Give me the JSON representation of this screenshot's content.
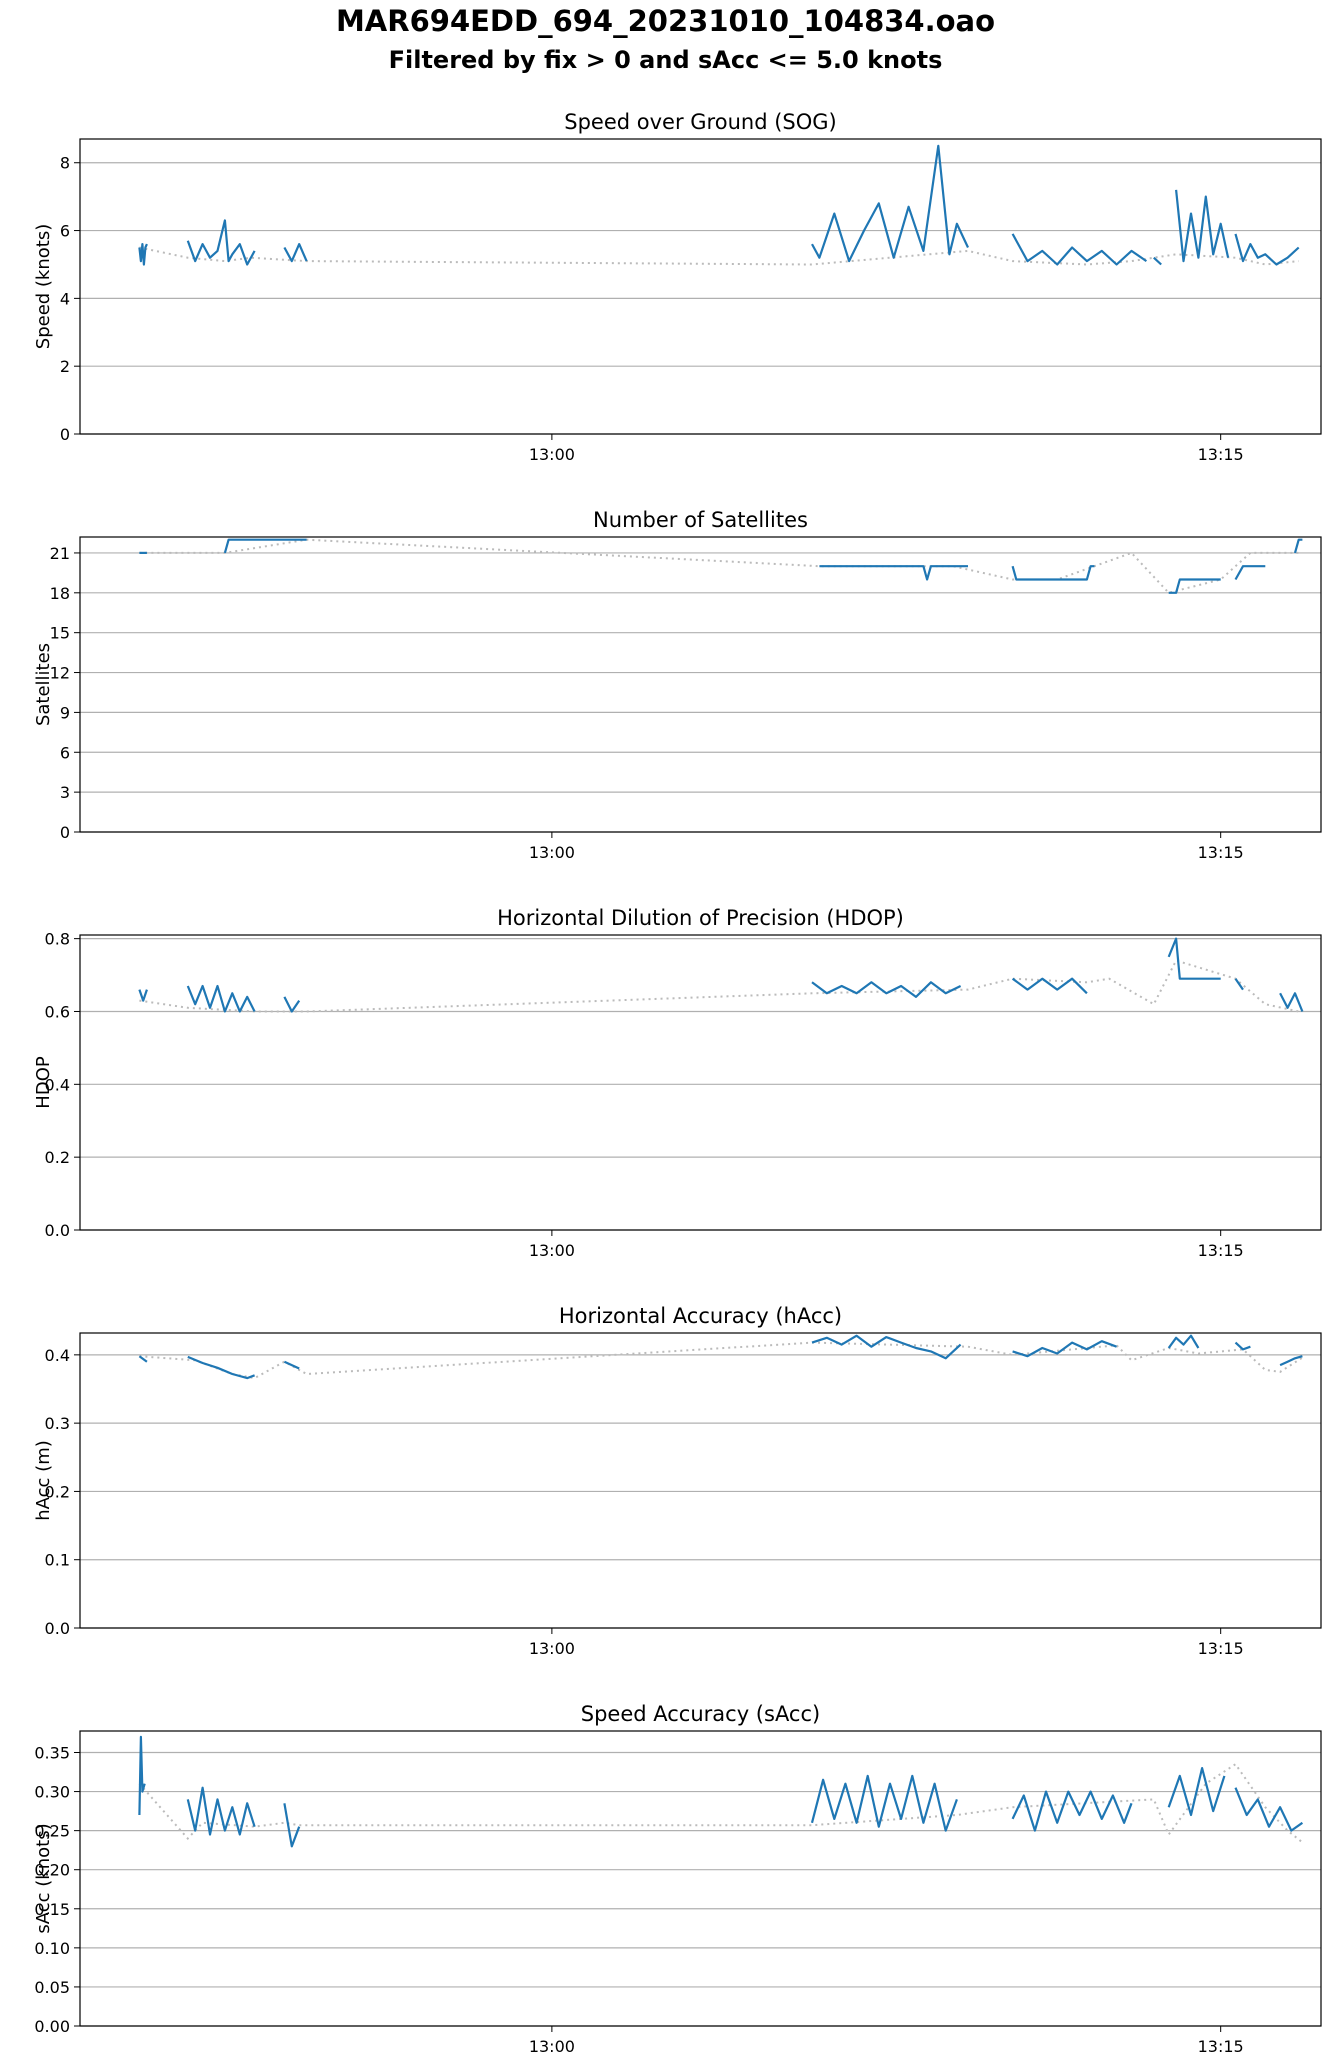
{
  "figure": {
    "title": "MAR694EDD_694_20231010_104834.oao",
    "subtitle": "Filtered by fix > 0 and sAcc <= 5.0 knots"
  },
  "chart_data": [
    {
      "type": "line",
      "title": "Speed over Ground (SOG)",
      "ylabel": "Speed (knots)",
      "xlabel": "",
      "xlim": [
        "12:49:25",
        "13:17:15"
      ],
      "ylim": [
        0,
        8.7
      ],
      "yticks": [
        "0",
        "2",
        "4",
        "6",
        "8"
      ],
      "xticks": [
        "13:00",
        "13:15"
      ],
      "grid": "y",
      "colors": {
        "measured": "#1f77b4",
        "gap": "#bbbbbb"
      },
      "segments": [
        {
          "x": [
            "12:50:45",
            "12:50:47",
            "12:50:49",
            "12:50:51",
            "12:50:53",
            "12:50:55"
          ],
          "y": [
            5.5,
            5.1,
            5.6,
            5.0,
            5.5,
            5.6
          ]
        },
        {
          "x": [
            "12:51:50",
            "12:52:00",
            "12:52:10",
            "12:52:20",
            "12:52:30",
            "12:52:40",
            "12:52:45",
            "12:52:50",
            "12:53:00",
            "12:53:10",
            "12:53:20"
          ],
          "y": [
            5.7,
            5.1,
            5.6,
            5.2,
            5.4,
            6.3,
            5.1,
            5.3,
            5.6,
            5.0,
            5.4
          ]
        },
        {
          "x": [
            "12:54:00",
            "12:54:10",
            "12:54:20",
            "12:54:30"
          ],
          "y": [
            5.5,
            5.1,
            5.6,
            5.1
          ]
        },
        {
          "x": [
            "13:05:50",
            "13:06:00",
            "13:06:20",
            "13:06:40",
            "13:07:00",
            "13:07:20",
            "13:07:40",
            "13:08:00",
            "13:08:20",
            "13:08:40",
            "13:08:55",
            "13:09:05",
            "13:09:20"
          ],
          "y": [
            5.6,
            5.2,
            6.5,
            5.1,
            6.0,
            6.8,
            5.2,
            6.7,
            5.4,
            8.5,
            5.3,
            6.2,
            5.5
          ]
        },
        {
          "x": [
            "13:10:20",
            "13:10:40",
            "13:11:00",
            "13:11:20",
            "13:11:40",
            "13:12:00",
            "13:12:20",
            "13:12:40",
            "13:13:00",
            "13:13:20"
          ],
          "y": [
            5.9,
            5.1,
            5.4,
            5.0,
            5.5,
            5.1,
            5.4,
            5.0,
            5.4,
            5.1
          ]
        },
        {
          "x": [
            "13:13:30",
            "13:13:40"
          ],
          "y": [
            5.2,
            5.0
          ]
        },
        {
          "x": [
            "13:14:00",
            "13:14:10",
            "13:14:20",
            "13:14:30",
            "13:14:40",
            "13:14:50",
            "13:15:00",
            "13:15:10"
          ],
          "y": [
            7.2,
            5.1,
            6.5,
            5.2,
            7.0,
            5.3,
            6.2,
            5.2
          ]
        },
        {
          "x": [
            "13:15:20",
            "13:15:30",
            "13:15:40",
            "13:15:50",
            "13:16:00",
            "13:16:15",
            "13:16:30",
            "13:16:45"
          ],
          "y": [
            5.9,
            5.1,
            5.6,
            5.2,
            5.3,
            5.0,
            5.2,
            5.5
          ]
        }
      ],
      "gap_line": {
        "x": [
          "12:50:45",
          "12:51:50",
          "12:52:40",
          "12:53:15",
          "12:54:30",
          "13:05:50",
          "13:09:20",
          "13:10:20",
          "13:12:00",
          "13:13:00",
          "13:14:00",
          "13:15:20",
          "13:16:00",
          "13:16:45"
        ],
        "y": [
          5.5,
          5.2,
          5.1,
          5.2,
          5.1,
          5.0,
          5.4,
          5.1,
          5.0,
          5.1,
          5.3,
          5.2,
          5.0,
          5.1
        ]
      }
    },
    {
      "type": "line",
      "title": "Number of Satellites",
      "ylabel": "Satellites",
      "xlabel": "",
      "xlim": [
        "12:49:25",
        "13:17:15"
      ],
      "ylim": [
        0,
        22.2
      ],
      "yticks": [
        "0",
        "3",
        "6",
        "9",
        "12",
        "15",
        "18",
        "21"
      ],
      "xticks": [
        "13:00",
        "13:15"
      ],
      "grid": "y",
      "colors": {
        "measured": "#1f77b4",
        "gap": "#bbbbbb"
      },
      "segments": [
        {
          "x": [
            "12:50:45",
            "12:50:55"
          ],
          "y": [
            21,
            21
          ]
        },
        {
          "x": [
            "12:52:40",
            "12:52:45",
            "12:53:00",
            "12:54:30"
          ],
          "y": [
            21,
            22,
            22,
            22
          ]
        },
        {
          "x": [
            "13:06:00",
            "13:08:20",
            "13:08:25",
            "13:08:30",
            "13:09:20"
          ],
          "y": [
            20,
            20,
            19,
            20,
            20
          ]
        },
        {
          "x": [
            "13:10:20",
            "13:10:25",
            "13:12:00",
            "13:12:05",
            "13:12:10"
          ],
          "y": [
            20,
            19,
            19,
            20,
            20
          ]
        },
        {
          "x": [
            "13:13:50",
            "13:14:00",
            "13:14:05",
            "13:14:10",
            "13:15:00"
          ],
          "y": [
            18,
            18,
            19,
            19,
            19
          ]
        },
        {
          "x": [
            "13:15:20",
            "13:15:30",
            "13:16:00"
          ],
          "y": [
            19,
            20,
            20
          ]
        },
        {
          "x": [
            "13:16:40",
            "13:16:45",
            "13:16:50"
          ],
          "y": [
            21,
            22,
            22
          ]
        }
      ],
      "gap_line": {
        "x": [
          "12:50:45",
          "12:52:40",
          "12:54:30",
          "13:06:00",
          "13:09:00",
          "13:10:20",
          "13:11:20",
          "13:12:10",
          "13:13:00",
          "13:13:50",
          "13:15:00",
          "13:15:40",
          "13:16:45"
        ],
        "y": [
          21,
          21,
          22,
          20,
          20,
          19,
          19,
          20,
          21,
          18,
          19,
          21,
          21
        ]
      }
    },
    {
      "type": "line",
      "title": "Horizontal Dilution of Precision (HDOP)",
      "ylabel": "HDOP",
      "xlabel": "",
      "xlim": [
        "12:49:25",
        "13:17:15"
      ],
      "ylim": [
        0,
        0.81
      ],
      "yticks": [
        "0.0",
        "0.2",
        "0.4",
        "0.6",
        "0.8"
      ],
      "xticks": [
        "13:00",
        "13:15"
      ],
      "grid": "y",
      "colors": {
        "measured": "#1f77b4",
        "gap": "#bbbbbb"
      },
      "segments": [
        {
          "x": [
            "12:50:45",
            "12:50:50",
            "12:50:55"
          ],
          "y": [
            0.66,
            0.63,
            0.66
          ]
        },
        {
          "x": [
            "12:51:50",
            "12:52:00",
            "12:52:10",
            "12:52:20",
            "12:52:30",
            "12:52:40",
            "12:52:50",
            "12:53:00",
            "12:53:10",
            "12:53:20"
          ],
          "y": [
            0.67,
            0.62,
            0.67,
            0.61,
            0.67,
            0.6,
            0.65,
            0.6,
            0.64,
            0.6
          ]
        },
        {
          "x": [
            "12:54:00",
            "12:54:10",
            "12:54:20"
          ],
          "y": [
            0.64,
            0.6,
            0.63
          ]
        },
        {
          "x": [
            "13:05:50",
            "13:06:10",
            "13:06:30",
            "13:06:50",
            "13:07:10",
            "13:07:30",
            "13:07:50",
            "13:08:10",
            "13:08:30",
            "13:08:50",
            "13:09:10"
          ],
          "y": [
            0.68,
            0.65,
            0.67,
            0.65,
            0.68,
            0.65,
            0.67,
            0.64,
            0.68,
            0.65,
            0.67
          ]
        },
        {
          "x": [
            "13:10:20",
            "13:10:40",
            "13:11:00",
            "13:11:20",
            "13:11:40",
            "13:12:00"
          ],
          "y": [
            0.69,
            0.66,
            0.69,
            0.66,
            0.69,
            0.65
          ]
        },
        {
          "x": [
            "13:13:50",
            "13:14:00",
            "13:14:05",
            "13:15:00"
          ],
          "y": [
            0.75,
            0.8,
            0.69,
            0.69
          ]
        },
        {
          "x": [
            "13:15:20",
            "13:15:30"
          ],
          "y": [
            0.69,
            0.66
          ]
        },
        {
          "x": [
            "13:16:20",
            "13:16:30",
            "13:16:40",
            "13:16:50"
          ],
          "y": [
            0.65,
            0.61,
            0.65,
            0.6
          ]
        }
      ],
      "gap_line": {
        "x": [
          "12:50:45",
          "12:51:50",
          "12:53:20",
          "12:54:30",
          "13:05:50",
          "13:09:20",
          "13:10:20",
          "13:12:00",
          "13:12:30",
          "13:13:30",
          "13:14:00",
          "13:15:20",
          "13:16:00",
          "13:16:45"
        ],
        "y": [
          0.63,
          0.61,
          0.6,
          0.6,
          0.65,
          0.66,
          0.69,
          0.68,
          0.69,
          0.62,
          0.74,
          0.69,
          0.62,
          0.6
        ]
      }
    },
    {
      "type": "line",
      "title": "Horizontal Accuracy (hAcc)",
      "ylabel": "hAcc (m)",
      "xlabel": "",
      "xlim": [
        "12:49:25",
        "13:17:15"
      ],
      "ylim": [
        0,
        0.432
      ],
      "yticks": [
        "0.0",
        "0.1",
        "0.2",
        "0.3",
        "0.4"
      ],
      "xticks": [
        "13:00",
        "13:15"
      ],
      "grid": "y",
      "colors": {
        "measured": "#1f77b4",
        "gap": "#bbbbbb"
      },
      "segments": [
        {
          "x": [
            "12:50:45",
            "12:50:55"
          ],
          "y": [
            0.398,
            0.39
          ]
        },
        {
          "x": [
            "12:51:50",
            "12:52:10",
            "12:52:30",
            "12:52:50",
            "12:53:10",
            "12:53:20"
          ],
          "y": [
            0.397,
            0.388,
            0.381,
            0.372,
            0.366,
            0.37
          ]
        },
        {
          "x": [
            "12:54:00",
            "12:54:20"
          ],
          "y": [
            0.39,
            0.38
          ]
        },
        {
          "x": [
            "13:05:50",
            "13:06:10",
            "13:06:30",
            "13:06:50",
            "13:07:10",
            "13:07:30",
            "13:07:50",
            "13:08:10",
            "13:08:30",
            "13:08:50",
            "13:09:10"
          ],
          "y": [
            0.418,
            0.425,
            0.415,
            0.428,
            0.412,
            0.426,
            0.418,
            0.41,
            0.405,
            0.395,
            0.415
          ]
        },
        {
          "x": [
            "13:10:20",
            "13:10:40",
            "13:11:00",
            "13:11:20",
            "13:11:40",
            "13:12:00",
            "13:12:20",
            "13:12:40"
          ],
          "y": [
            0.405,
            0.398,
            0.41,
            0.402,
            0.418,
            0.408,
            0.42,
            0.412
          ]
        },
        {
          "x": [
            "13:13:50",
            "13:14:00",
            "13:14:10",
            "13:14:20",
            "13:14:30"
          ],
          "y": [
            0.41,
            0.425,
            0.415,
            0.428,
            0.41
          ]
        },
        {
          "x": [
            "13:15:20",
            "13:15:30",
            "13:15:40"
          ],
          "y": [
            0.418,
            0.408,
            0.412
          ]
        },
        {
          "x": [
            "13:16:20",
            "13:16:30",
            "13:16:40",
            "13:16:50"
          ],
          "y": [
            0.385,
            0.39,
            0.395,
            0.398
          ]
        }
      ],
      "gap_line": {
        "x": [
          "12:50:45",
          "12:52:00",
          "12:52:50",
          "12:53:20",
          "12:54:00",
          "12:54:30",
          "13:05:50",
          "13:09:20",
          "13:10:20",
          "13:12:40",
          "13:13:00",
          "13:13:50",
          "13:14:30",
          "13:15:30",
          "13:16:00",
          "13:16:20",
          "13:16:50"
        ],
        "y": [
          0.398,
          0.392,
          0.372,
          0.366,
          0.39,
          0.372,
          0.418,
          0.412,
          0.4,
          0.414,
          0.392,
          0.41,
          0.402,
          0.408,
          0.378,
          0.375,
          0.396
        ]
      }
    },
    {
      "type": "line",
      "title": "Speed Accuracy (sAcc)",
      "ylabel": "sAcc (knots)",
      "xlabel": "",
      "xlim": [
        "12:49:25",
        "13:17:15"
      ],
      "ylim": [
        0,
        0.3775
      ],
      "yticks": [
        "0.00",
        "0.05",
        "0.10",
        "0.15",
        "0.20",
        "0.25",
        "0.30",
        "0.35"
      ],
      "xticks": [
        "13:00",
        "13:15"
      ],
      "grid": "y",
      "colors": {
        "measured": "#1f77b4",
        "gap": "#bbbbbb"
      },
      "segments": [
        {
          "x": [
            "12:50:45",
            "12:50:47",
            "12:50:49",
            "12:50:52"
          ],
          "y": [
            0.27,
            0.37,
            0.3,
            0.31
          ]
        },
        {
          "x": [
            "12:51:50",
            "12:52:00",
            "12:52:10",
            "12:52:20",
            "12:52:30",
            "12:52:40",
            "12:52:50",
            "12:53:00",
            "12:53:10",
            "12:53:20"
          ],
          "y": [
            0.29,
            0.25,
            0.305,
            0.245,
            0.29,
            0.25,
            0.28,
            0.245,
            0.285,
            0.255
          ]
        },
        {
          "x": [
            "12:54:00",
            "12:54:10",
            "12:54:20"
          ],
          "y": [
            0.285,
            0.23,
            0.255
          ]
        },
        {
          "x": [
            "13:05:50",
            "13:06:05",
            "13:06:20",
            "13:06:35",
            "13:06:50",
            "13:07:05",
            "13:07:20",
            "13:07:35",
            "13:07:50",
            "13:08:05",
            "13:08:20",
            "13:08:35",
            "13:08:50",
            "13:09:05"
          ],
          "y": [
            0.26,
            0.315,
            0.265,
            0.31,
            0.26,
            0.32,
            0.255,
            0.31,
            0.265,
            0.32,
            0.26,
            0.31,
            0.25,
            0.29
          ]
        },
        {
          "x": [
            "13:10:20",
            "13:10:35",
            "13:10:50",
            "13:11:05",
            "13:11:20",
            "13:11:35",
            "13:11:50",
            "13:12:05",
            "13:12:20",
            "13:12:35",
            "13:12:50",
            "13:13:00"
          ],
          "y": [
            0.265,
            0.295,
            0.25,
            0.3,
            0.26,
            0.3,
            0.27,
            0.3,
            0.265,
            0.295,
            0.26,
            0.285
          ]
        },
        {
          "x": [
            "13:13:50",
            "13:14:05",
            "13:14:20",
            "13:14:35",
            "13:14:50",
            "13:15:05"
          ],
          "y": [
            0.28,
            0.32,
            0.27,
            0.33,
            0.275,
            0.32
          ]
        },
        {
          "x": [
            "13:15:20",
            "13:15:35",
            "13:15:50",
            "13:16:05",
            "13:16:20",
            "13:16:35",
            "13:16:50"
          ],
          "y": [
            0.305,
            0.27,
            0.29,
            0.255,
            0.28,
            0.25,
            0.26
          ]
        }
      ],
      "gap_line": {
        "x": [
          "12:50:45",
          "12:51:50",
          "12:52:10",
          "12:53:20",
          "12:54:00",
          "12:54:20",
          "13:05:50",
          "13:09:05",
          "13:10:20",
          "13:13:30",
          "13:13:50",
          "13:14:40",
          "13:15:20",
          "13:16:00",
          "13:16:30",
          "13:16:50"
        ],
        "y": [
          0.31,
          0.24,
          0.26,
          0.255,
          0.26,
          0.257,
          0.257,
          0.27,
          0.28,
          0.29,
          0.245,
          0.31,
          0.335,
          0.28,
          0.25,
          0.235
        ]
      }
    }
  ]
}
